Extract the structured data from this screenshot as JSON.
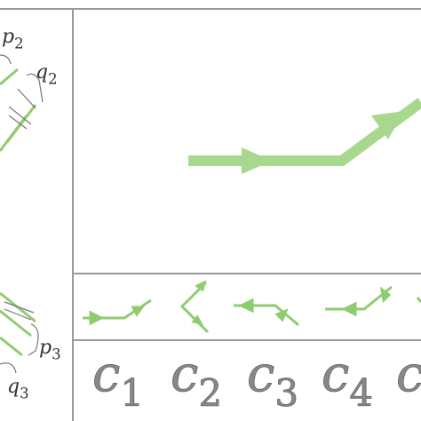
{
  "left_labels": [
    {
      "base": "p",
      "sub": "2"
    },
    {
      "base": "q",
      "sub": "2"
    },
    {
      "base": "p",
      "sub": "3"
    },
    {
      "base": "q",
      "sub": "3"
    }
  ],
  "columns": [
    {
      "base": "c",
      "sub": "1"
    },
    {
      "base": "c",
      "sub": "2"
    },
    {
      "base": "c",
      "sub": "3"
    },
    {
      "base": "c",
      "sub": "4"
    },
    {
      "base": "c"
    }
  ]
}
